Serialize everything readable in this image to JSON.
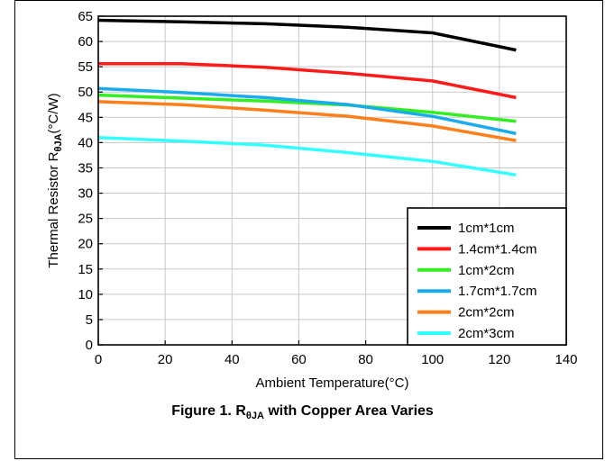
{
  "chart_data": {
    "type": "line",
    "ylabel_main": "Thermal Resistor R",
    "ylabel_sub": "θJA",
    "ylabel_unit": "(°C/W)",
    "xlabel": "Ambient Temperature(°C)",
    "xlim": [
      0,
      140
    ],
    "ylim": [
      0,
      65
    ],
    "xticks": [
      0,
      20,
      40,
      60,
      80,
      100,
      120,
      140
    ],
    "yticks": [
      0,
      5,
      10,
      15,
      20,
      25,
      30,
      35,
      40,
      45,
      50,
      55,
      60,
      65
    ],
    "grid": true,
    "legend_position": "bottom-right",
    "series": [
      {
        "name": "1cm*1cm",
        "color": "#000000",
        "x": [
          0,
          25,
          50,
          75,
          100,
          125
        ],
        "y": [
          64.2,
          63.9,
          63.5,
          62.8,
          61.7,
          58.3
        ]
      },
      {
        "name": "1.4cm*1.4cm",
        "color": "#ff1a1a",
        "x": [
          0,
          25,
          50,
          75,
          100,
          125
        ],
        "y": [
          55.6,
          55.6,
          54.9,
          53.7,
          52.2,
          48.9
        ]
      },
      {
        "name": "1cm*2cm",
        "color": "#33ee22",
        "x": [
          0,
          25,
          50,
          75,
          100,
          125
        ],
        "y": [
          49.4,
          48.8,
          48.2,
          47.4,
          46.0,
          44.2
        ]
      },
      {
        "name": "1.7cm*1.7cm",
        "color": "#1aaaee",
        "x": [
          0,
          25,
          50,
          75,
          100,
          125
        ],
        "y": [
          50.7,
          49.9,
          48.9,
          47.5,
          45.2,
          41.8
        ]
      },
      {
        "name": "2cm*2cm",
        "color": "#ff7f1a",
        "x": [
          0,
          25,
          50,
          75,
          100,
          125
        ],
        "y": [
          48.1,
          47.5,
          46.4,
          45.2,
          43.3,
          40.4
        ]
      },
      {
        "name": "2cm*3cm",
        "color": "#33ffff",
        "x": [
          0,
          25,
          50,
          75,
          100,
          125
        ],
        "y": [
          41.0,
          40.3,
          39.5,
          38.0,
          36.3,
          33.6
        ]
      }
    ]
  },
  "caption": {
    "prefix": "Figure 1. R",
    "sub": "θJA",
    "suffix": " with Copper Area Varies"
  }
}
